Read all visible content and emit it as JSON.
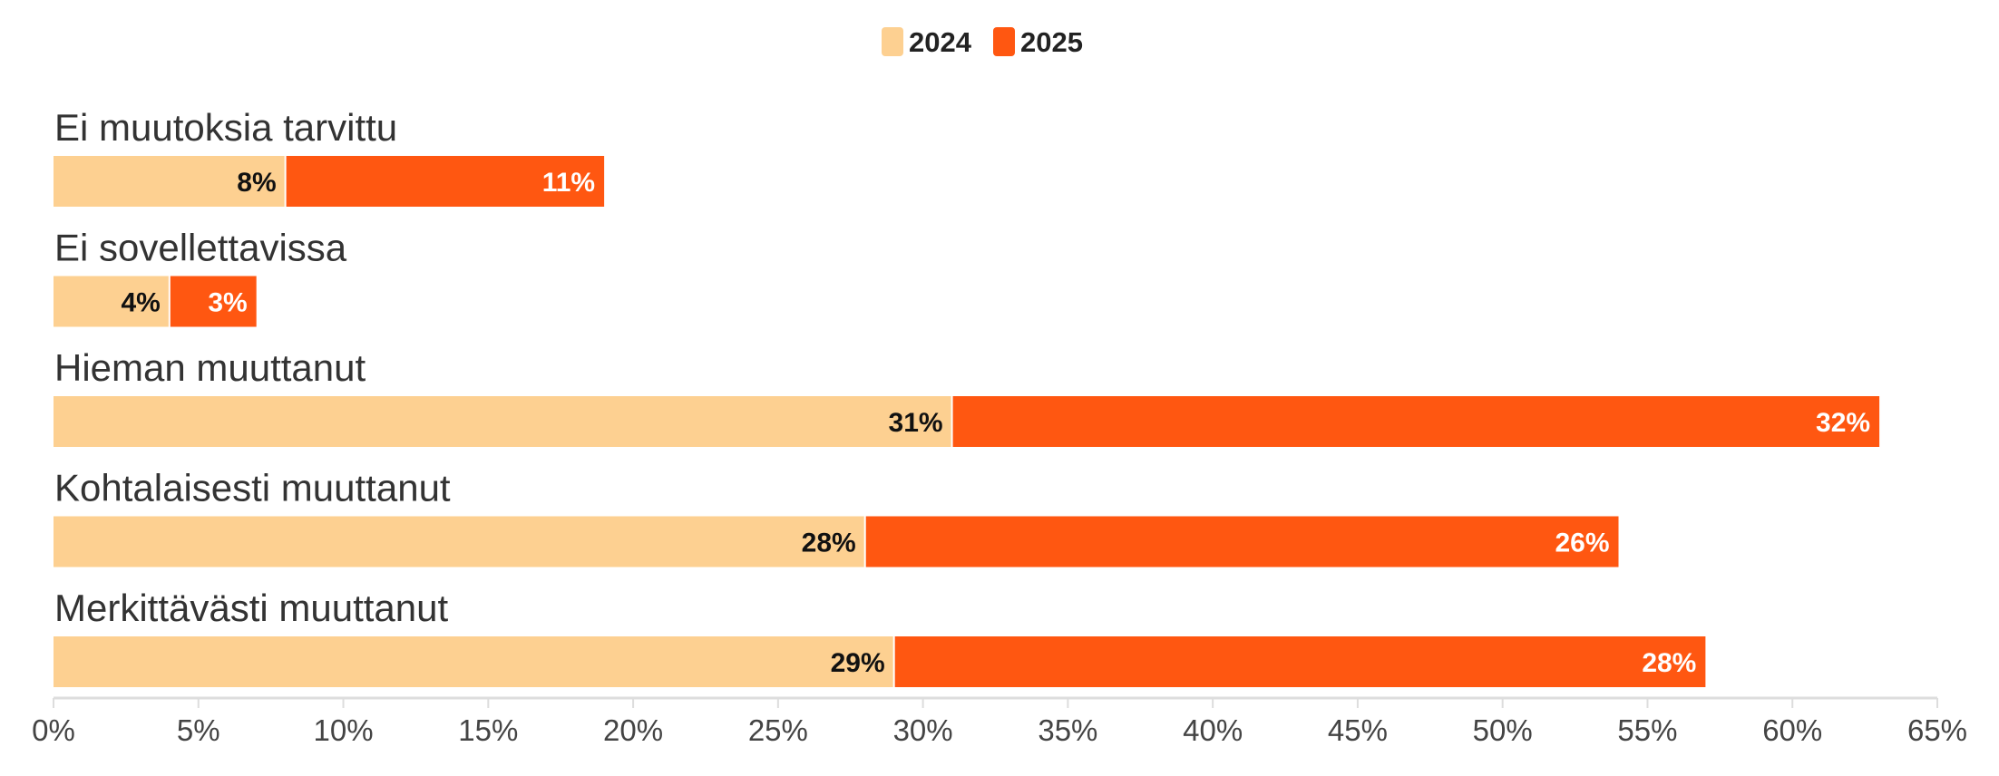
{
  "chart_data": {
    "type": "bar",
    "orientation": "horizontal",
    "stacked": true,
    "title": "",
    "xlabel": "",
    "ylabel": "",
    "categories": [
      "Ei muutoksia tarvittu",
      "Ei sovellettavissa",
      "Hieman muuttanut",
      "Kohtalaisesti muuttanut",
      "Merkittävästi muuttanut"
    ],
    "series": [
      {
        "name": "2024",
        "color": "#fdd091",
        "label_color": "#111111",
        "values": [
          8,
          4,
          31,
          28,
          29
        ],
        "labels": [
          "8%",
          "4%",
          "31%",
          "28%",
          "29%"
        ]
      },
      {
        "name": "2025",
        "color": "#ff5711",
        "label_color": "#ffffff",
        "values": [
          11,
          3,
          32,
          26,
          28
        ],
        "labels": [
          "11%",
          "3%",
          "32%",
          "26%",
          "28%"
        ]
      }
    ],
    "xlim": [
      0,
      65
    ],
    "xticks": [
      0,
      5,
      10,
      15,
      20,
      25,
      30,
      35,
      40,
      45,
      50,
      55,
      60,
      65
    ],
    "xtick_labels": [
      "0%",
      "5%",
      "10%",
      "15%",
      "20%",
      "25%",
      "30%",
      "35%",
      "40%",
      "45%",
      "50%",
      "55%",
      "60%",
      "65%"
    ],
    "grid": false,
    "legend_position": "top-center",
    "axis_color": "#dddddd"
  }
}
